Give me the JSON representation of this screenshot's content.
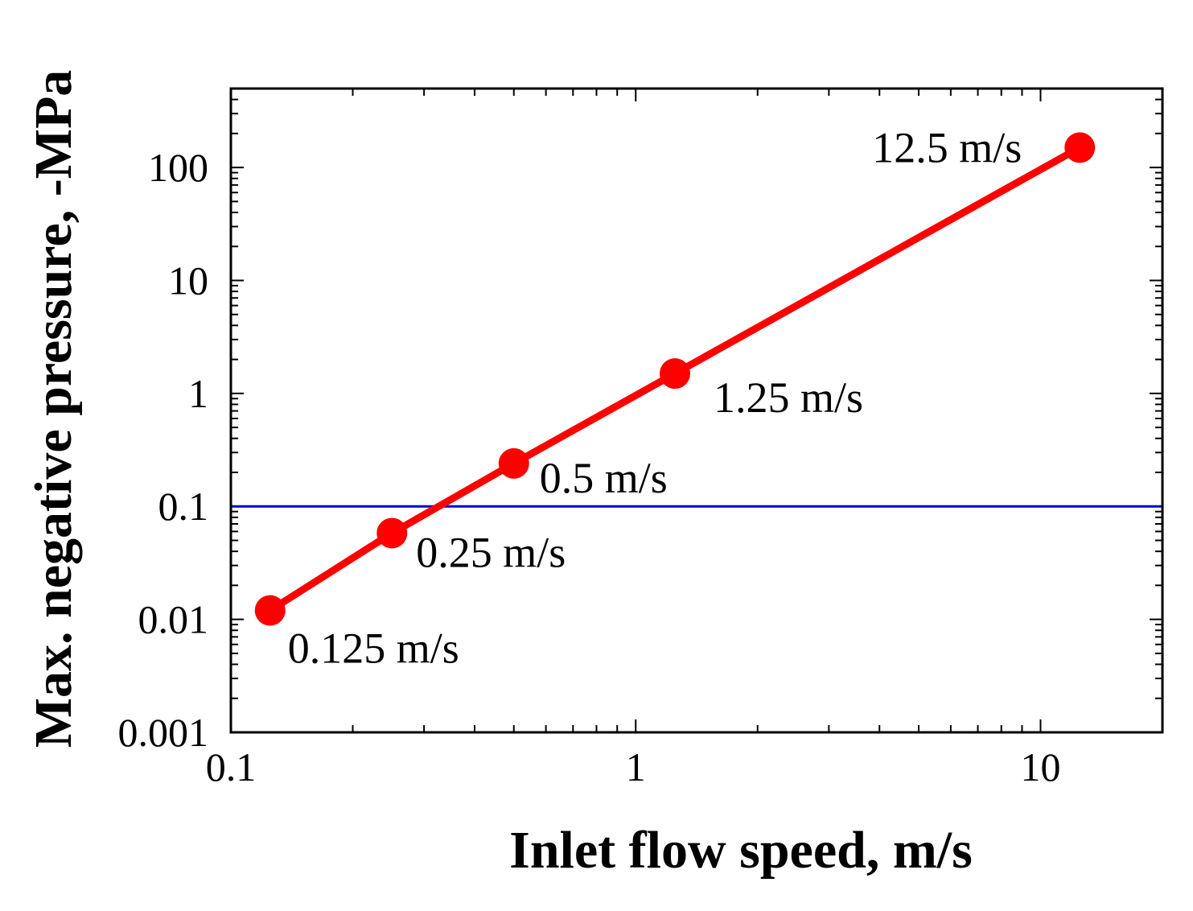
{
  "chart_data": {
    "type": "line",
    "title": "",
    "xlabel": "Inlet flow speed, m/s",
    "ylabel": "Max. negative pressure, -MPa",
    "xscale": "log",
    "yscale": "log",
    "xlim": [
      0.1,
      20
    ],
    "ylim": [
      0.001,
      500
    ],
    "grid": false,
    "x_ticks": [
      {
        "value": 0.1,
        "label": "0.1"
      },
      {
        "value": 1,
        "label": "1"
      },
      {
        "value": 10,
        "label": "10"
      }
    ],
    "y_ticks": [
      {
        "value": 0.001,
        "label": "0.001"
      },
      {
        "value": 0.01,
        "label": "0.01"
      },
      {
        "value": 0.1,
        "label": "0.1"
      },
      {
        "value": 1,
        "label": "1"
      },
      {
        "value": 10,
        "label": "10"
      },
      {
        "value": 100,
        "label": "100"
      }
    ],
    "series": [
      {
        "color": "#ff0000",
        "marker": "circle",
        "x": [
          0.125,
          0.25,
          0.5,
          1.25,
          12.5
        ],
        "y": [
          0.012,
          0.058,
          0.24,
          1.5,
          150
        ],
        "point_labels": [
          "0.125 m/s",
          "0.25 m/s",
          "0.5 m/s",
          "1.25 m/s",
          "12.5 m/s"
        ]
      }
    ],
    "reference_lines": [
      {
        "orientation": "horizontal",
        "y": 0.1,
        "color": "#0000cc"
      }
    ]
  }
}
